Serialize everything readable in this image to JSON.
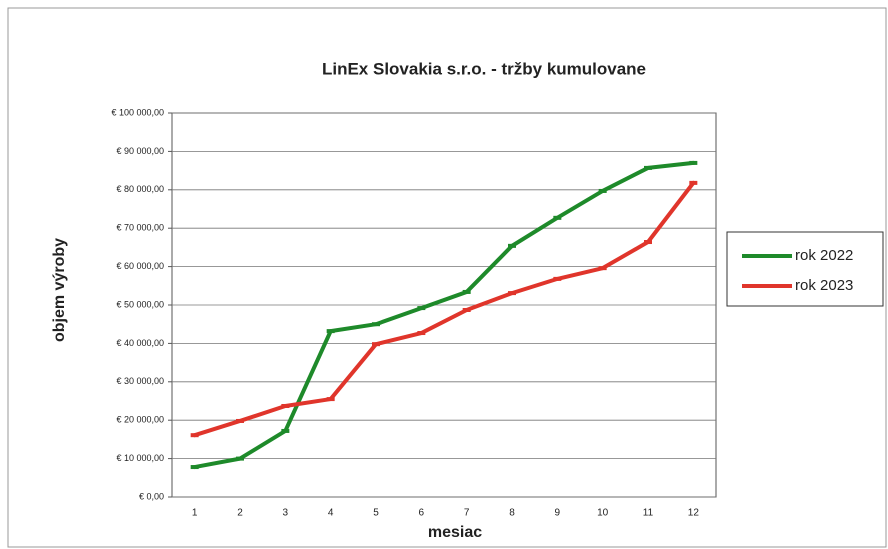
{
  "chart_data": {
    "type": "line",
    "title": "LinEx Slovakia s.r.o. - tržby kumulovane",
    "x_label": "mesiac",
    "y_label": "objem výroby",
    "categories": [
      "1",
      "2",
      "3",
      "4",
      "5",
      "6",
      "7",
      "8",
      "9",
      "10",
      "11",
      "12"
    ],
    "series": [
      {
        "name": "rok 2022",
        "color": "#1e8a2a",
        "values": [
          7800,
          10000,
          17200,
          43200,
          45000,
          49200,
          53400,
          65400,
          72700,
          79700,
          85700,
          87000
        ]
      },
      {
        "name": "rok 2023",
        "color": "#e0352b",
        "values": [
          16100,
          19800,
          23700,
          25500,
          39800,
          42700,
          48700,
          53100,
          56800,
          59600,
          66400,
          81800
        ]
      }
    ],
    "ylim": [
      0,
      100000
    ],
    "yticks": [
      {
        "value": 0,
        "label": "€ 0,00"
      },
      {
        "value": 10000,
        "label": "€ 10 000,00"
      },
      {
        "value": 20000,
        "label": "€ 20 000,00"
      },
      {
        "value": 30000,
        "label": "€ 30 000,00"
      },
      {
        "value": 40000,
        "label": "€ 40 000,00"
      },
      {
        "value": 50000,
        "label": "€ 50 000,00"
      },
      {
        "value": 60000,
        "label": "€ 60 000,00"
      },
      {
        "value": 70000,
        "label": "€ 70 000,00"
      },
      {
        "value": 80000,
        "label": "€ 80 000,00"
      },
      {
        "value": 90000,
        "label": "€ 90 000,00"
      },
      {
        "value": 100000,
        "label": "€ 100 000,00"
      }
    ],
    "grid": true,
    "legend": "right"
  }
}
